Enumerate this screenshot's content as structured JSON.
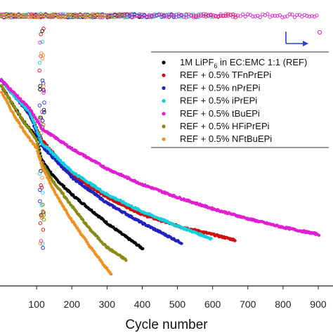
{
  "chart_data": {
    "type": "scatter",
    "xlabel": "Cycle number",
    "xlim": [
      0,
      920
    ],
    "ylim": [
      0,
      1
    ],
    "x_ticks": [
      {
        "value": 100,
        "label": "100"
      },
      {
        "value": 200,
        "label": "200"
      },
      {
        "value": 300,
        "label": "300"
      },
      {
        "value": 400,
        "label": "400"
      },
      {
        "value": 500,
        "label": "500"
      },
      {
        "value": 600,
        "label": "600"
      },
      {
        "value": 700,
        "label": "700"
      },
      {
        "value": 800,
        "label": "800"
      },
      {
        "value": 900,
        "label": "900"
      }
    ],
    "legend": {
      "placement": "right",
      "entries": [
        {
          "label_main": "1M LiPF",
          "label_sub": "6",
          "label_rest": " in EC:EMC 1:1 (REF)"
        },
        {
          "label_main": "REF + 0.5% TFnPrEPi"
        },
        {
          "label_main": "REF + 0.5% nPrEPi"
        },
        {
          "label_main": "REF + 0.5% iPrEPi"
        },
        {
          "label_main": "REF + 0.5% tBuEPi"
        },
        {
          "label_main": "REF + 0.5% HFiPrEPi"
        },
        {
          "label_main": "REF + 0.5% NFtBuEPi"
        }
      ]
    },
    "series": [
      {
        "color": "#000000",
        "end_cycle": 402,
        "capacity": [
          [
            0,
            0.7
          ],
          [
            30,
            0.64
          ],
          [
            60,
            0.58
          ],
          [
            100,
            0.52
          ],
          [
            115,
            0.44
          ],
          [
            150,
            0.38
          ],
          [
            200,
            0.32
          ],
          [
            250,
            0.27
          ],
          [
            300,
            0.22
          ],
          [
            350,
            0.175
          ],
          [
            402,
            0.13
          ]
        ]
      },
      {
        "color": "#d01010",
        "end_cycle": 665,
        "capacity": [
          [
            0,
            0.72
          ],
          [
            40,
            0.66
          ],
          [
            80,
            0.61
          ],
          [
            115,
            0.51
          ],
          [
            200,
            0.39
          ],
          [
            300,
            0.31
          ],
          [
            400,
            0.25
          ],
          [
            500,
            0.21
          ],
          [
            600,
            0.18
          ],
          [
            665,
            0.16
          ]
        ]
      },
      {
        "color": "#2222c0",
        "end_cycle": 512,
        "capacity": [
          [
            0,
            0.72
          ],
          [
            40,
            0.66
          ],
          [
            80,
            0.6
          ],
          [
            115,
            0.49
          ],
          [
            200,
            0.38
          ],
          [
            300,
            0.29
          ],
          [
            400,
            0.22
          ],
          [
            512,
            0.15
          ]
        ]
      },
      {
        "color": "#11d0dd",
        "end_cycle": 597,
        "capacity": [
          [
            0,
            0.72
          ],
          [
            40,
            0.66
          ],
          [
            80,
            0.61
          ],
          [
            115,
            0.5
          ],
          [
            200,
            0.4
          ],
          [
            300,
            0.32
          ],
          [
            400,
            0.26
          ],
          [
            500,
            0.21
          ],
          [
            597,
            0.165
          ]
        ]
      },
      {
        "color": "#e020d0",
        "end_cycle": 902,
        "capacity": [
          [
            0,
            0.72
          ],
          [
            40,
            0.67
          ],
          [
            80,
            0.62
          ],
          [
            115,
            0.55
          ],
          [
            200,
            0.48
          ],
          [
            300,
            0.41
          ],
          [
            400,
            0.355
          ],
          [
            500,
            0.31
          ],
          [
            600,
            0.27
          ],
          [
            700,
            0.235
          ],
          [
            800,
            0.205
          ],
          [
            902,
            0.18
          ]
        ]
      },
      {
        "color": "#8a8a18",
        "end_cycle": 355,
        "capacity": [
          [
            0,
            0.7
          ],
          [
            30,
            0.64
          ],
          [
            60,
            0.58
          ],
          [
            100,
            0.51
          ],
          [
            115,
            0.43
          ],
          [
            150,
            0.36
          ],
          [
            200,
            0.28
          ],
          [
            250,
            0.2
          ],
          [
            300,
            0.135
          ],
          [
            355,
            0.09
          ]
        ]
      },
      {
        "color": "#f09020",
        "end_cycle": 312,
        "capacity": [
          [
            0,
            0.68
          ],
          [
            30,
            0.61
          ],
          [
            60,
            0.55
          ],
          [
            100,
            0.48
          ],
          [
            115,
            0.42
          ],
          [
            150,
            0.33
          ],
          [
            200,
            0.23
          ],
          [
            250,
            0.14
          ],
          [
            312,
            0.04
          ]
        ]
      }
    ],
    "efficiency_y": 0.945
  }
}
